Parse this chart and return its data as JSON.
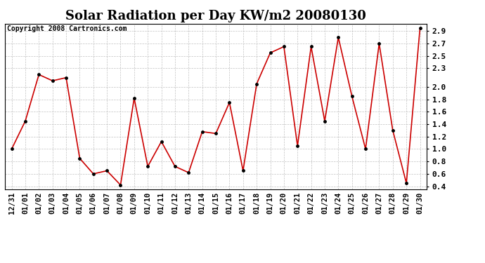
{
  "title": "Solar Radiation per Day KW/m2 20080130",
  "copyright": "Copyright 2008 Cartronics.com",
  "x_labels": [
    "12/31",
    "01/01",
    "01/02",
    "01/03",
    "01/04",
    "01/05",
    "01/06",
    "01/07",
    "01/08",
    "01/09",
    "01/10",
    "01/11",
    "01/12",
    "01/13",
    "01/14",
    "01/15",
    "01/16",
    "01/17",
    "01/18",
    "01/19",
    "01/20",
    "01/21",
    "01/22",
    "01/23",
    "01/24",
    "01/25",
    "01/26",
    "01/27",
    "01/28",
    "01/29",
    "01/30"
  ],
  "y_values": [
    1.0,
    1.45,
    2.2,
    2.1,
    2.15,
    0.85,
    0.6,
    0.65,
    0.42,
    1.82,
    0.72,
    1.12,
    0.72,
    0.62,
    1.28,
    1.25,
    1.75,
    0.65,
    2.05,
    2.55,
    2.65,
    1.05,
    2.65,
    1.45,
    2.8,
    1.85,
    1.0,
    2.7,
    1.3,
    0.45,
    2.95
  ],
  "line_color": "#cc0000",
  "marker_color": "#000000",
  "marker_size": 2.5,
  "ylim": [
    0.35,
    3.02
  ],
  "yticks": [
    0.4,
    0.6,
    0.8,
    1.0,
    1.2,
    1.4,
    1.6,
    1.8,
    2.0,
    2.3,
    2.5,
    2.7,
    2.9
  ],
  "background_color": "#ffffff",
  "grid_color": "#bbbbbb",
  "title_fontsize": 13,
  "copyright_fontsize": 7,
  "tick_fontsize": 7.5,
  "ytick_fontsize": 8
}
